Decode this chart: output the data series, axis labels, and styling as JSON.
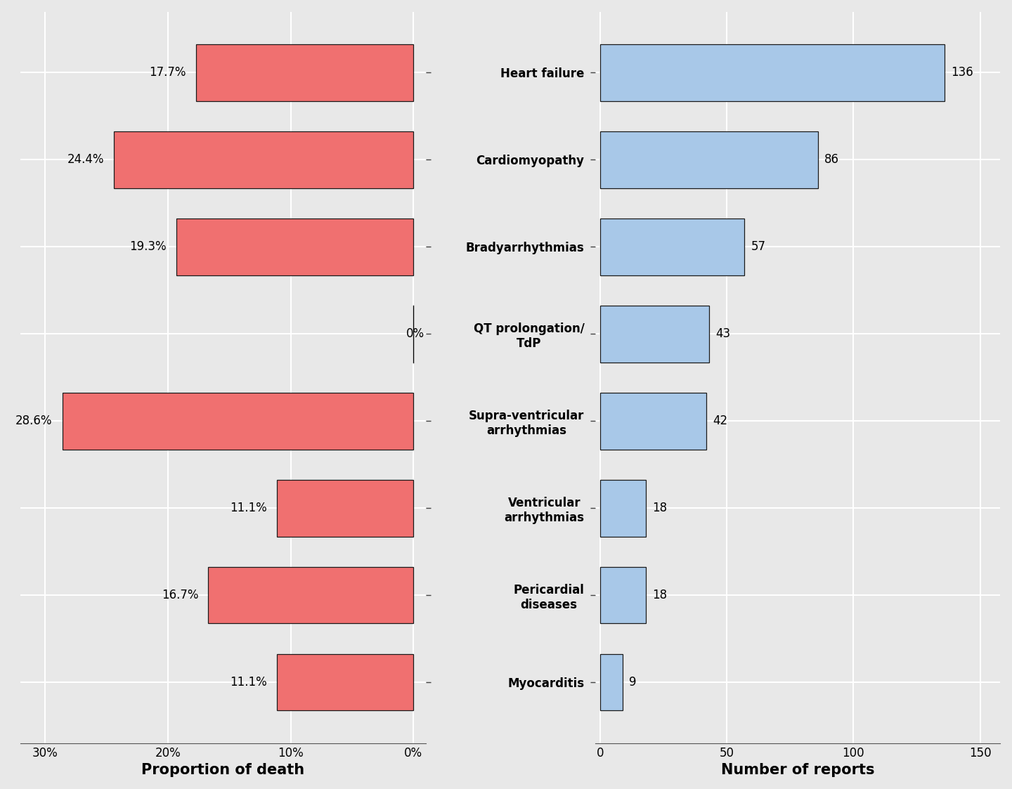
{
  "categories": [
    "Heart failure",
    "Cardiomyopathy",
    "Bradyarrhythmias",
    "QT prolongation/\nTdP",
    "Supra-ventricular\narrhythmias",
    "Ventricular\narrhythmias",
    "Pericardial\ndiseases",
    "Myocarditis"
  ],
  "reports": [
    136,
    86,
    57,
    43,
    42,
    18,
    18,
    9
  ],
  "death_pct": [
    17.7,
    24.4,
    19.3,
    0.0,
    28.6,
    11.1,
    16.7,
    11.1
  ],
  "death_labels": [
    "17.7%",
    "24.4%",
    "19.3%",
    "0%",
    "28.6%",
    "11.1%",
    "16.7%",
    "11.1%"
  ],
  "bar_color_left": "#F07070",
  "bar_color_right": "#A8C8E8",
  "bar_edgecolor": "#1a1a1a",
  "bg_color": "#E8E8E8",
  "grid_color": "#FFFFFF",
  "xlabel_left": "Proportion of death",
  "xlabel_right": "Number of reports",
  "xlim_left": [
    32,
    -1
  ],
  "xlim_right": [
    -2,
    158
  ],
  "xticks_left": [
    30,
    20,
    10,
    0
  ],
  "xtick_labels_left": [
    "30%",
    "20%",
    "10%",
    "0%"
  ],
  "xticks_right": [
    0,
    50,
    100,
    150
  ],
  "xlabel_fontsize": 15,
  "label_fontsize": 12,
  "tick_fontsize": 12,
  "bar_height": 0.65
}
